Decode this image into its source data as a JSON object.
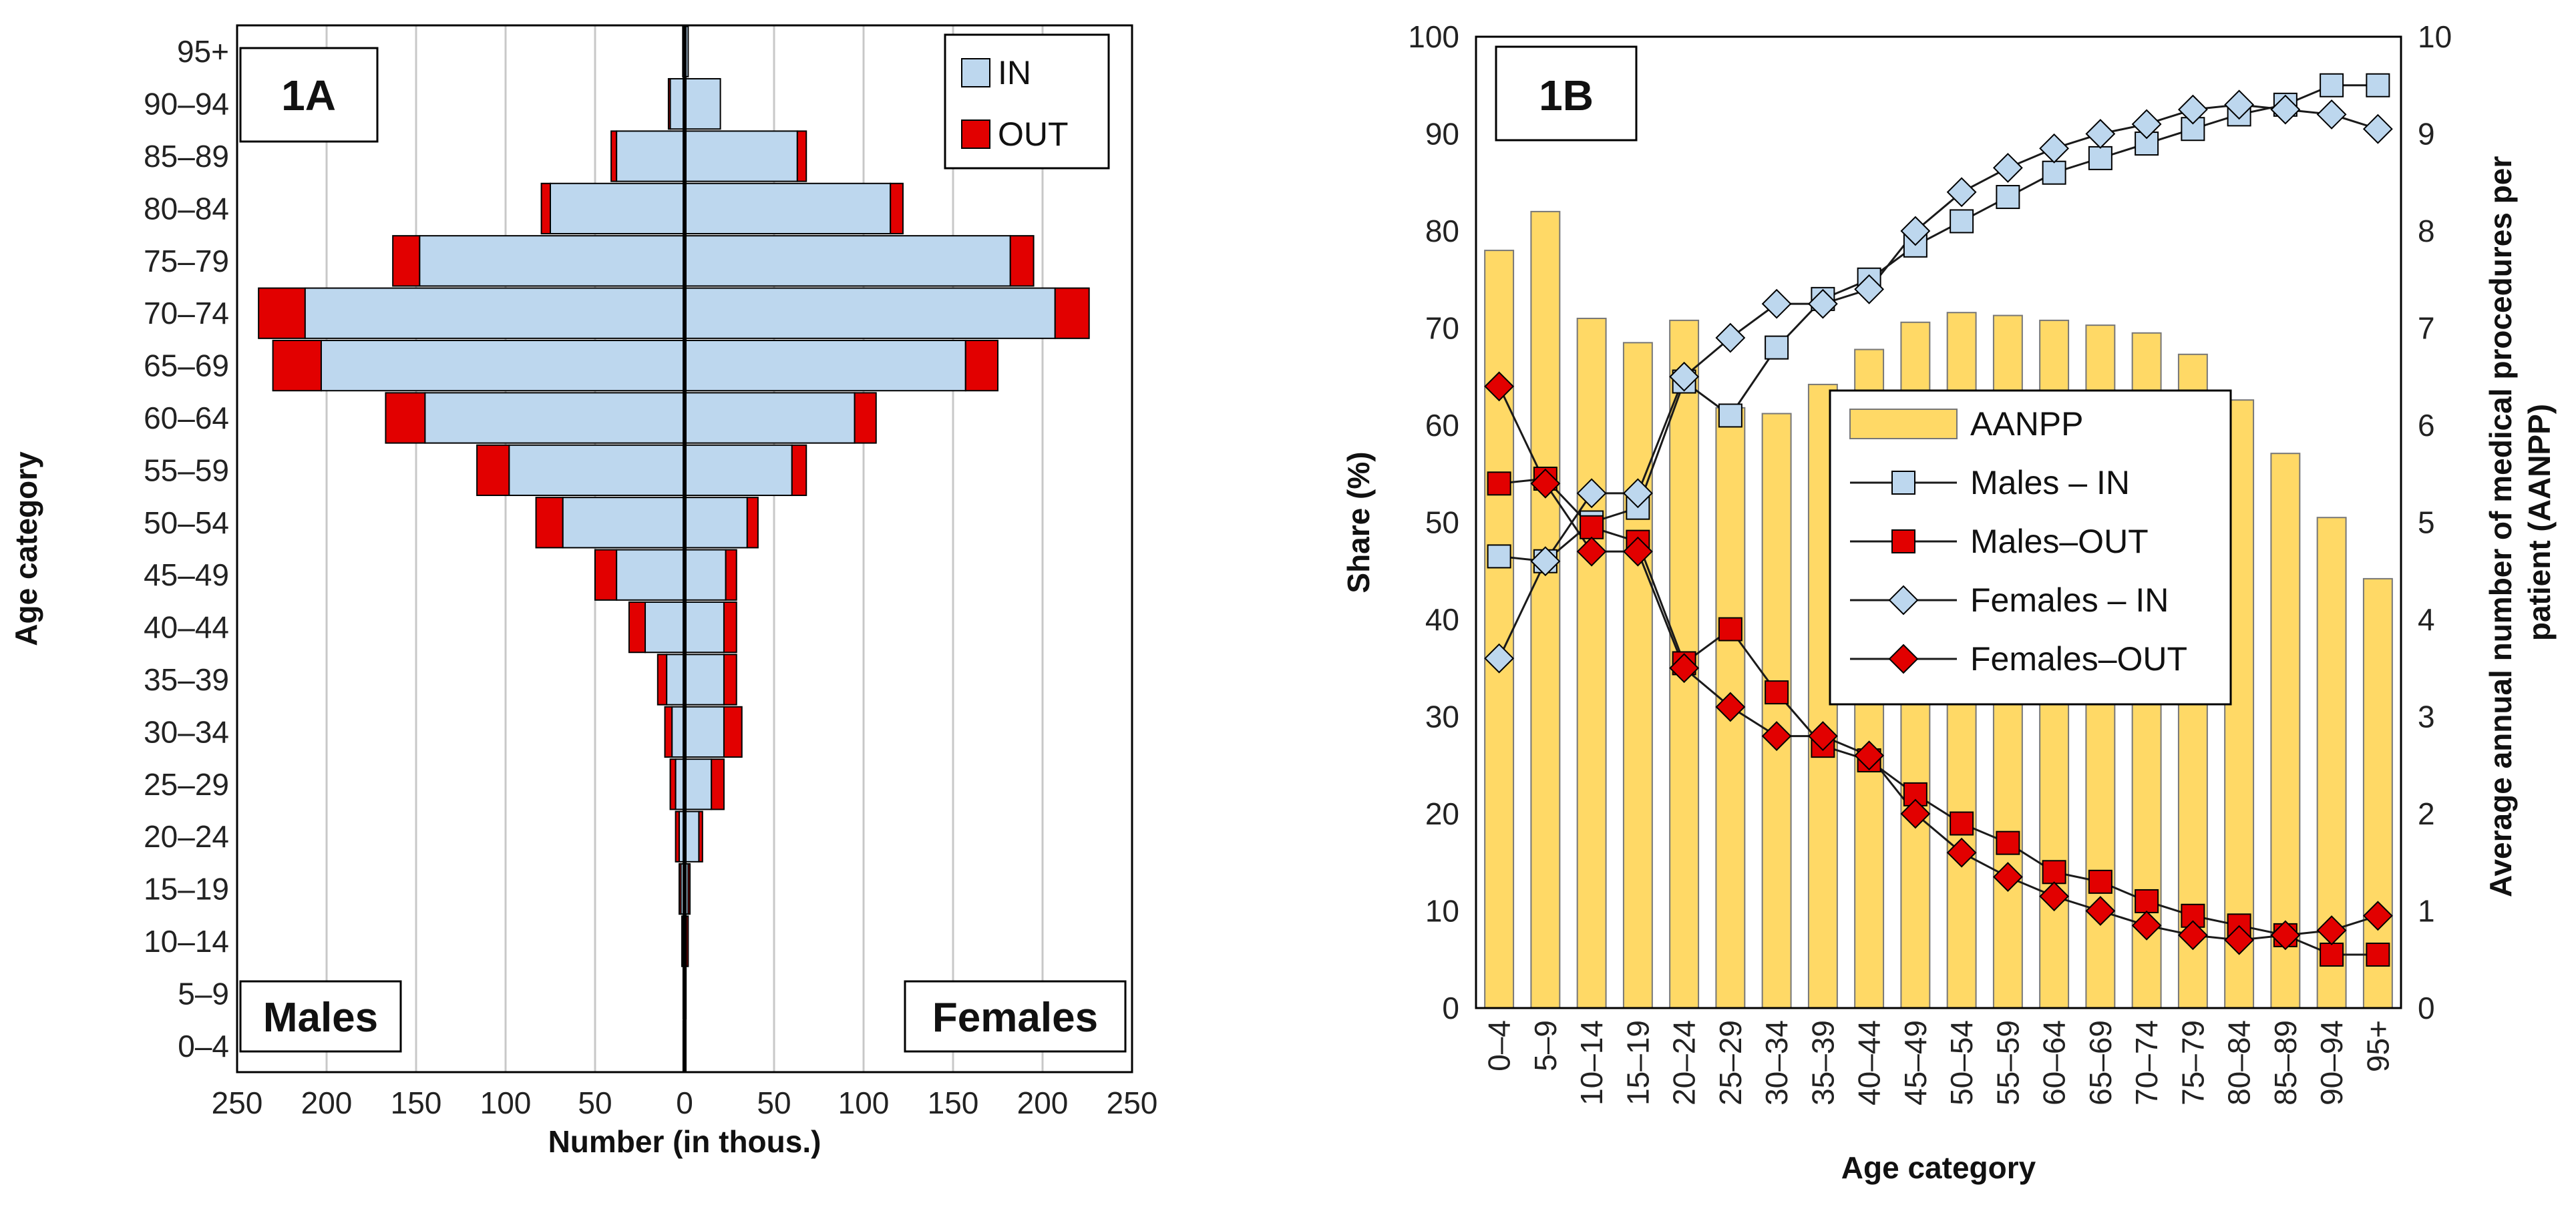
{
  "chart_data": [
    {
      "type": "bar",
      "subtype": "population-pyramid",
      "panel_label": "1A",
      "title": "",
      "xlabel": "Number (in thous.)",
      "ylabel": "Age category",
      "xlim": [
        -250,
        250
      ],
      "xticks": [
        -250,
        -200,
        -150,
        -100,
        -50,
        0,
        50,
        100,
        150,
        200,
        250
      ],
      "xtick_labels": [
        "250",
        "200",
        "150",
        "100",
        "50",
        "0",
        "50",
        "100",
        "150",
        "200",
        "250"
      ],
      "grid": "vertical",
      "side_labels": {
        "left": "Males",
        "right": "Females"
      },
      "legend_position": "top-right",
      "categories": [
        "0–4",
        "5–9",
        "10–14",
        "15–19",
        "20–24",
        "25–29",
        "30–34",
        "35–39",
        "40–44",
        "45–49",
        "50–54",
        "55–59",
        "60–64",
        "65–69",
        "70–74",
        "75–79",
        "80–84",
        "85–89",
        "90–94",
        "95+"
      ],
      "series": [
        {
          "name": "IN",
          "color": "#BDD7EE",
          "males": [
            0.5,
            0.5,
            1,
            2,
            3,
            5,
            7,
            10,
            22,
            38,
            68,
            98,
            145,
            203,
            212,
            148,
            75,
            38,
            8,
            1
          ],
          "females": [
            0.5,
            0.5,
            1,
            2,
            8,
            15,
            22,
            22,
            22,
            23,
            35,
            60,
            95,
            157,
            207,
            182,
            115,
            63,
            20,
            2
          ]
        },
        {
          "name": "OUT",
          "color": "#E20000",
          "males": [
            0.3,
            0.3,
            0.5,
            1,
            2,
            3,
            4,
            5,
            9,
            12,
            15,
            18,
            22,
            27,
            26,
            15,
            5,
            3,
            1,
            0
          ],
          "females": [
            0.2,
            0.3,
            1,
            1,
            2,
            7,
            10,
            7,
            7,
            6,
            6,
            8,
            12,
            18,
            19,
            13,
            7,
            5,
            0,
            0
          ]
        }
      ]
    },
    {
      "type": "bar+line",
      "panel_label": "1B",
      "title": "",
      "xlabel": "Age category",
      "ylabel": "Share (%)",
      "y2label": "Average annual number of medical procedures per patient (AANPP)",
      "ylim": [
        0,
        100
      ],
      "y2lim": [
        0,
        10
      ],
      "yticks": [
        0,
        10,
        20,
        30,
        40,
        50,
        60,
        70,
        80,
        90,
        100
      ],
      "y2ticks": [
        0,
        1,
        2,
        3,
        4,
        5,
        6,
        7,
        8,
        9,
        10
      ],
      "grid": "none",
      "legend_position": "center",
      "categories": [
        "0–4",
        "5–9",
        "10–14",
        "15–19",
        "20–24",
        "25–29",
        "30–34",
        "35–39",
        "40–44",
        "45–49",
        "50–54",
        "55–59",
        "60–64",
        "65–69",
        "70–74",
        "75–79",
        "80–84",
        "85–89",
        "90–94",
        "95+"
      ],
      "series": [
        {
          "name": "AANPP",
          "kind": "bar",
          "axis": "y2",
          "color": "#FFD966",
          "values": [
            7.8,
            8.2,
            7.1,
            6.85,
            7.08,
            6.18,
            6.12,
            6.42,
            6.78,
            7.06,
            7.16,
            7.13,
            7.08,
            7.03,
            6.95,
            6.73,
            6.26,
            5.71,
            5.05,
            4.42
          ]
        },
        {
          "name": "Males – IN",
          "kind": "line",
          "axis": "y",
          "marker": "square",
          "color": "#BDD7EE",
          "values": [
            46.5,
            46,
            50,
            51.5,
            64.5,
            61,
            68,
            73,
            75,
            78.5,
            81,
            83.5,
            86,
            87.5,
            89,
            90.5,
            92,
            93,
            95,
            95
          ]
        },
        {
          "name": "Males–OUT",
          "kind": "line",
          "axis": "y",
          "marker": "square",
          "color": "#E20000",
          "values": [
            54,
            54.5,
            49.5,
            48,
            35.5,
            39,
            32.5,
            27,
            25.5,
            22,
            19,
            17,
            14,
            13,
            11,
            9.5,
            8.5,
            7.5,
            5.5,
            5.5
          ]
        },
        {
          "name": "Females – IN",
          "kind": "line",
          "axis": "y",
          "marker": "diamond",
          "color": "#BDD7EE",
          "values": [
            36,
            46,
            53,
            53,
            65,
            69,
            72.5,
            72.5,
            74,
            80,
            84,
            86.5,
            88.5,
            90,
            91,
            92.5,
            93,
            92.5,
            92,
            90.5
          ]
        },
        {
          "name": "Females–OUT",
          "kind": "line",
          "axis": "y",
          "marker": "diamond",
          "color": "#E20000",
          "values": [
            64,
            54,
            47,
            47,
            35,
            31,
            28,
            28,
            26,
            20,
            16,
            13.5,
            11.5,
            10,
            8.5,
            7.5,
            7,
            7.5,
            8,
            9.5
          ]
        }
      ]
    }
  ]
}
